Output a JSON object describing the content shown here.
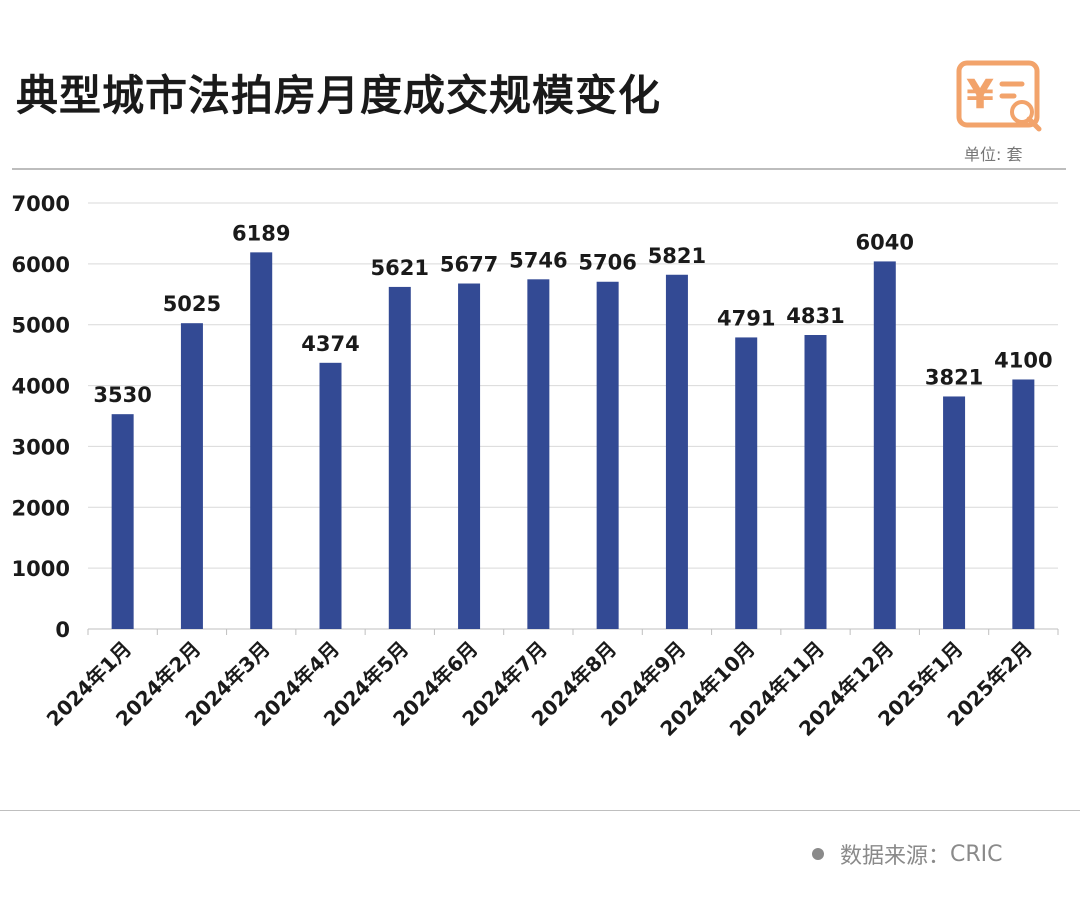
{
  "header": {
    "title": "典型城市法拍房月度成交规模变化",
    "unit": "单位: 套",
    "logo_icon": "yuan-receipt-search-icon",
    "logo_symbol": "¥"
  },
  "footer": {
    "source_label": "数据来源：",
    "source_value": "CRIC"
  },
  "colors": {
    "bar": "#334a94",
    "accent": "#f2a36b",
    "grid": "#d9d9d9"
  },
  "chart_data": {
    "type": "bar",
    "categories": [
      "2024年1月",
      "2024年2月",
      "2024年3月",
      "2024年4月",
      "2024年5月",
      "2024年6月",
      "2024年7月",
      "2024年8月",
      "2024年9月",
      "2024年10月",
      "2024年11月",
      "2024年12月",
      "2025年1月",
      "2025年2月"
    ],
    "values": [
      3530,
      5025,
      6189,
      4374,
      5621,
      5677,
      5746,
      5706,
      5821,
      4791,
      4831,
      6040,
      3821,
      4100
    ],
    "data_labels": [
      "3530",
      "5025",
      "6189",
      "4374",
      "5621",
      "5677",
      "5746",
      "5706",
      "5821",
      "4791",
      "4831",
      "6040",
      "3821",
      "4100"
    ],
    "y_ticks": [
      0,
      1000,
      2000,
      3000,
      4000,
      5000,
      6000,
      7000
    ],
    "y_tick_labels": [
      "0",
      "1000",
      "2000",
      "3000",
      "4000",
      "5000",
      "6000",
      "7000"
    ],
    "ylim": [
      0,
      7000
    ],
    "grid": true,
    "title": "典型城市法拍房月度成交规模变化",
    "xlabel": "",
    "ylabel": ""
  }
}
